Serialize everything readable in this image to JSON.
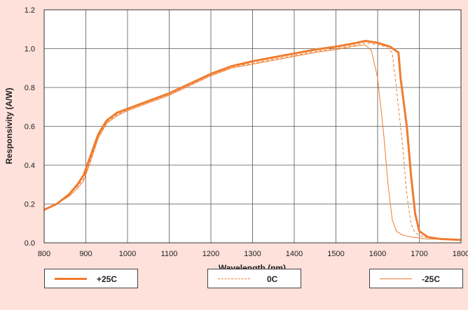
{
  "chart_data": {
    "type": "line",
    "xlabel": "Wavelength (nm)",
    "ylabel": "Responsivity (A/W)",
    "xlim": [
      800,
      1800
    ],
    "ylim": [
      0,
      1.2
    ],
    "xticks": [
      "800",
      "900",
      "1000",
      "1100",
      "1200",
      "1300",
      "1400",
      "1500",
      "1600",
      "1700",
      "1800"
    ],
    "yticks": [
      "0.0",
      "0.2",
      "0.4",
      "0.6",
      "0.8",
      "1.0",
      "1.2"
    ],
    "grid": true,
    "legend_position": "bottom",
    "series": [
      {
        "name": "+25C",
        "color": "#ef7c2e",
        "style": "thick-solid",
        "x": [
          800,
          830,
          860,
          880,
          895,
          910,
          930,
          950,
          975,
          1000,
          1050,
          1100,
          1150,
          1200,
          1250,
          1300,
          1350,
          1400,
          1450,
          1500,
          1550,
          1570,
          1600,
          1630,
          1650,
          1655,
          1670,
          1680,
          1690,
          1700,
          1720,
          1750,
          1800
        ],
        "y": [
          0.17,
          0.2,
          0.25,
          0.3,
          0.35,
          0.44,
          0.56,
          0.63,
          0.67,
          0.69,
          0.73,
          0.77,
          0.82,
          0.87,
          0.91,
          0.935,
          0.955,
          0.975,
          0.995,
          1.01,
          1.03,
          1.04,
          1.03,
          1.01,
          0.98,
          0.85,
          0.6,
          0.35,
          0.15,
          0.06,
          0.03,
          0.02,
          0.015
        ]
      },
      {
        "name": "0C",
        "color": "#ef7c2e",
        "style": "dashed",
        "x": [
          800,
          830,
          860,
          880,
          895,
          910,
          930,
          950,
          975,
          1000,
          1050,
          1100,
          1150,
          1200,
          1250,
          1300,
          1350,
          1400,
          1450,
          1500,
          1550,
          1570,
          1600,
          1620,
          1635,
          1645,
          1660,
          1670,
          1680,
          1690,
          1710,
          1750,
          1800
        ],
        "y": [
          0.17,
          0.2,
          0.25,
          0.29,
          0.33,
          0.42,
          0.55,
          0.62,
          0.66,
          0.685,
          0.725,
          0.765,
          0.815,
          0.865,
          0.905,
          0.925,
          0.945,
          0.965,
          0.985,
          1.0,
          1.02,
          1.03,
          1.02,
          1.01,
          0.98,
          0.8,
          0.5,
          0.25,
          0.1,
          0.05,
          0.03,
          0.02,
          0.015
        ]
      },
      {
        "name": "-25C",
        "color": "#ef7c2e",
        "style": "thin-solid",
        "x": [
          800,
          830,
          860,
          880,
          895,
          910,
          930,
          950,
          975,
          1000,
          1050,
          1100,
          1150,
          1200,
          1250,
          1300,
          1350,
          1400,
          1450,
          1500,
          1550,
          1570,
          1585,
          1600,
          1615,
          1625,
          1635,
          1645,
          1660,
          1680,
          1720,
          1800
        ],
        "y": [
          0.17,
          0.2,
          0.24,
          0.28,
          0.32,
          0.41,
          0.54,
          0.615,
          0.655,
          0.68,
          0.72,
          0.76,
          0.81,
          0.86,
          0.9,
          0.92,
          0.94,
          0.96,
          0.98,
          0.995,
          1.015,
          1.02,
          0.99,
          0.85,
          0.55,
          0.3,
          0.12,
          0.06,
          0.04,
          0.03,
          0.02,
          0.015
        ]
      }
    ]
  },
  "legend": [
    {
      "label": "+25C",
      "color": "#ef7c2e"
    },
    {
      "label": "0C",
      "color": "#ef7c2e"
    },
    {
      "label": "-25C",
      "color": "#ef7c2e"
    }
  ],
  "colors": {
    "background": "#fde1da",
    "plot_background": "#ffffff",
    "grid": "#555555",
    "series": "#ef7c2e"
  }
}
